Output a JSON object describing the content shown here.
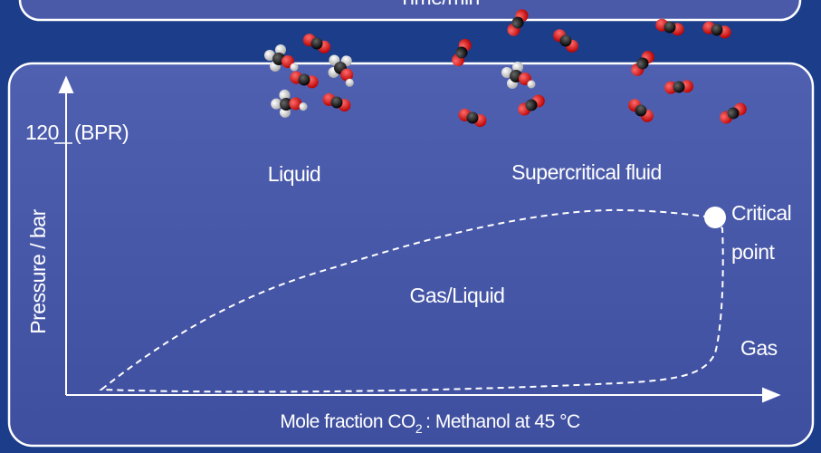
{
  "header": {
    "title": "Time/min"
  },
  "diagram": {
    "y_axis_label": "Pressure / bar",
    "tick_label": "120",
    "tick_note": "(BPR)",
    "regions": [
      "Liquid",
      "Supercritical fluid",
      "Gas/Liquid",
      "Gas"
    ],
    "critical_point": [
      "Critical",
      "point"
    ],
    "x_axis_label": {
      "main": "Mole fraction CO",
      "subscript": "2",
      "rest": ": Methanol at 45 °C"
    }
  }
}
